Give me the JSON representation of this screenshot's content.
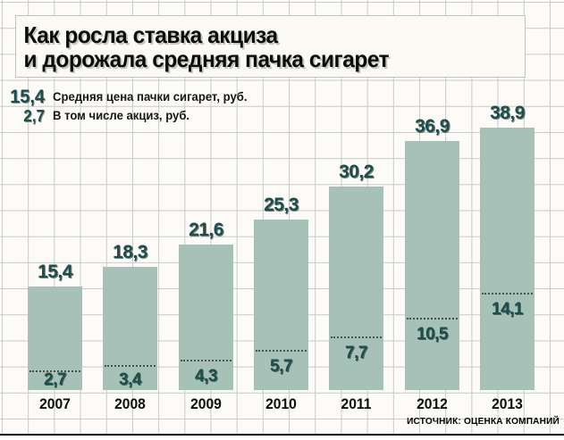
{
  "title": {
    "line1": "Как росла ставка акциза",
    "line2": "и дорожала средняя пачка сигарет"
  },
  "legend": [
    {
      "value": "15,4",
      "label": "Средняя цена пачки сигарет, руб."
    },
    {
      "value": "2,7",
      "label": "В том числе акциз, руб."
    }
  ],
  "source": "ИСТОЧНИК: ОЦЕНКА КОМПАНИЙ",
  "colors": {
    "bar": "#a6c1b8",
    "accent_text": "#1b4f4c",
    "grid": "#c9c9c9",
    "background": "#fcfbf7",
    "dotted_line": "#4f4f4f"
  },
  "chart_data": {
    "type": "bar",
    "title": "Как росла ставка акциза и дорожала средняя пачка сигарет",
    "categories": [
      "2007",
      "2008",
      "2009",
      "2010",
      "2011",
      "2012",
      "2013"
    ],
    "series": [
      {
        "name": "Средняя цена пачки сигарет, руб.",
        "values": [
          15.4,
          18.3,
          21.6,
          25.3,
          30.2,
          36.9,
          38.9
        ]
      },
      {
        "name": "В том числе акциз, руб.",
        "values": [
          2.7,
          3.4,
          4.3,
          5.7,
          7.7,
          10.5,
          14.1
        ]
      }
    ],
    "value_labels": {
      "price": [
        "15,4",
        "18,3",
        "21,6",
        "25,3",
        "30,2",
        "36,9",
        "38,9"
      ],
      "excise": [
        "2,7",
        "3,4",
        "4,3",
        "5,7",
        "7,7",
        "10,5",
        "14,1"
      ]
    },
    "xlabel": "",
    "ylabel": "руб.",
    "ylim": [
      0,
      40
    ],
    "grid": true,
    "legend_position": "top-left",
    "source": "ИСТОЧНИК: ОЦЕНКА КОМПАНИЙ"
  }
}
